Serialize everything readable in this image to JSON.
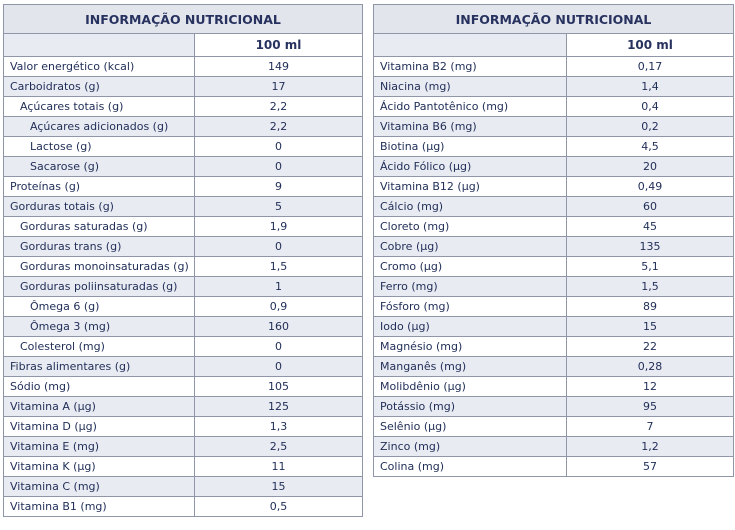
{
  "left_table": {
    "title": "INFORMAÇÃO NUTRICIONAL",
    "column_header": "100 ml",
    "rows": [
      {
        "label": "Valor energético (kcal)",
        "value": "149",
        "indent": 0
      },
      {
        "label": "Carboidratos (g)",
        "value": "17",
        "indent": 0
      },
      {
        "label": "Açúcares totais (g)",
        "value": "2,2",
        "indent": 1
      },
      {
        "label": "Açúcares adicionados (g)",
        "value": "2,2",
        "indent": 2
      },
      {
        "label": "Lactose (g)",
        "value": "0",
        "indent": 2
      },
      {
        "label": "Sacarose (g)",
        "value": "0",
        "indent": 2
      },
      {
        "label": "Proteínas (g)",
        "value": "9",
        "indent": 0
      },
      {
        "label": "Gorduras totais (g)",
        "value": "5",
        "indent": 0
      },
      {
        "label": "Gorduras saturadas (g)",
        "value": "1,9",
        "indent": 1
      },
      {
        "label": "Gorduras trans (g)",
        "value": "0",
        "indent": 1
      },
      {
        "label": "Gorduras monoinsaturadas (g)",
        "value": "1,5",
        "indent": 1
      },
      {
        "label": "Gorduras poliinsaturadas (g)",
        "value": "1",
        "indent": 1
      },
      {
        "label": "Ômega 6 (g)",
        "value": "0,9",
        "indent": 2
      },
      {
        "label": "Ômega 3 (mg)",
        "value": "160",
        "indent": 2
      },
      {
        "label": "Colesterol (mg)",
        "value": "0",
        "indent": 1
      },
      {
        "label": "Fibras alimentares (g)",
        "value": "0",
        "indent": 0
      },
      {
        "label": "Sódio (mg)",
        "value": "105",
        "indent": 0
      },
      {
        "label": "Vitamina A (µg)",
        "value": "125",
        "indent": 0
      },
      {
        "label": "Vitamina D (µg)",
        "value": "1,3",
        "indent": 0
      },
      {
        "label": "Vitamina E (mg)",
        "value": "2,5",
        "indent": 0
      },
      {
        "label": "Vitamina K (µg)",
        "value": "11",
        "indent": 0
      },
      {
        "label": "Vitamina C (mg)",
        "value": "15",
        "indent": 0
      },
      {
        "label": "Vitamina B1 (mg)",
        "value": "0,5",
        "indent": 0
      }
    ]
  },
  "right_table": {
    "title": "INFORMAÇÃO NUTRICIONAL",
    "column_header": "100 ml",
    "rows": [
      {
        "label": "Vitamina B2 (mg)",
        "value": "0,17",
        "indent": 0
      },
      {
        "label": "Niacina (mg)",
        "value": "1,4",
        "indent": 0
      },
      {
        "label": "Ácido Pantotênico (mg)",
        "value": "0,4",
        "indent": 0
      },
      {
        "label": "Vitamina B6 (mg)",
        "value": "0,2",
        "indent": 0
      },
      {
        "label": "Biotina (µg)",
        "value": "4,5",
        "indent": 0
      },
      {
        "label": "Ácido Fólico (µg)",
        "value": "20",
        "indent": 0
      },
      {
        "label": "Vitamina B12 (µg)",
        "value": "0,49",
        "indent": 0
      },
      {
        "label": "Cálcio (mg)",
        "value": "60",
        "indent": 0
      },
      {
        "label": "Cloreto (mg)",
        "value": "45",
        "indent": 0
      },
      {
        "label": "Cobre (µg)",
        "value": "135",
        "indent": 0
      },
      {
        "label": "Cromo (µg)",
        "value": "5,1",
        "indent": 0
      },
      {
        "label": "Ferro (mg)",
        "value": "1,5",
        "indent": 0
      },
      {
        "label": "Fósforo (mg)",
        "value": "89",
        "indent": 0
      },
      {
        "label": "Iodo (µg)",
        "value": "15",
        "indent": 0
      },
      {
        "label": "Magnésio (mg)",
        "value": "22",
        "indent": 0
      },
      {
        "label": "Manganês (mg)",
        "value": "0,28",
        "indent": 0
      },
      {
        "label": "Molibdênio (µg)",
        "value": "12",
        "indent": 0
      },
      {
        "label": "Potássio (mg)",
        "value": "95",
        "indent": 0
      },
      {
        "label": "Selênio (µg)",
        "value": "7",
        "indent": 0
      },
      {
        "label": "Zinco (mg)",
        "value": "1,2",
        "indent": 0
      },
      {
        "label": "Colina (mg)",
        "value": "57",
        "indent": 0
      }
    ]
  },
  "colors": {
    "text": "#1f2d57",
    "border": "#8f96a8",
    "shade": "#e9ebf2",
    "title_bg": "#e3e5ed"
  }
}
